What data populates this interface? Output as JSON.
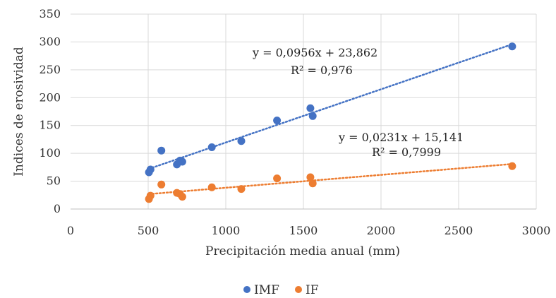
{
  "chart_data": {
    "type": "scatter",
    "title": "",
    "xlabel": "Precipitación media anual (mm)",
    "ylabel": "Indices de erosividad",
    "xlim": [
      0,
      3000
    ],
    "ylim": [
      0,
      350
    ],
    "xticks": [
      0,
      500,
      1000,
      1500,
      2000,
      2500,
      3000
    ],
    "yticks": [
      0,
      50,
      100,
      150,
      200,
      250,
      300,
      350
    ],
    "grid": "vertical and horizontal",
    "legend_position": "bottom",
    "series": [
      {
        "name": "IMF",
        "color": "#4472C4",
        "x": [
          505,
          515,
          585,
          685,
          705,
          720,
          910,
          1100,
          1330,
          1545,
          1560,
          2845
        ],
        "y": [
          66,
          71,
          105,
          80,
          87,
          85,
          111,
          122,
          159,
          181,
          167,
          292
        ],
        "trendline": {
          "slope": 0.0956,
          "intercept": 23.862,
          "x_range": [
            505,
            2845
          ],
          "equation": "y = 0,0956x + 23,862",
          "r2": "R² = 0,976"
        }
      },
      {
        "name": "IF",
        "color": "#ED7D31",
        "x": [
          505,
          515,
          585,
          685,
          705,
          720,
          910,
          1100,
          1330,
          1545,
          1560,
          2845
        ],
        "y": [
          18,
          24,
          44,
          29,
          27,
          22,
          39,
          36,
          55,
          57,
          46,
          77
        ],
        "trendline": {
          "slope": 0.0231,
          "intercept": 15.141,
          "x_range": [
            505,
            2845
          ],
          "equation": "y = 0,0231x + 15,141",
          "r2": "R² = 0,7999"
        }
      }
    ]
  }
}
